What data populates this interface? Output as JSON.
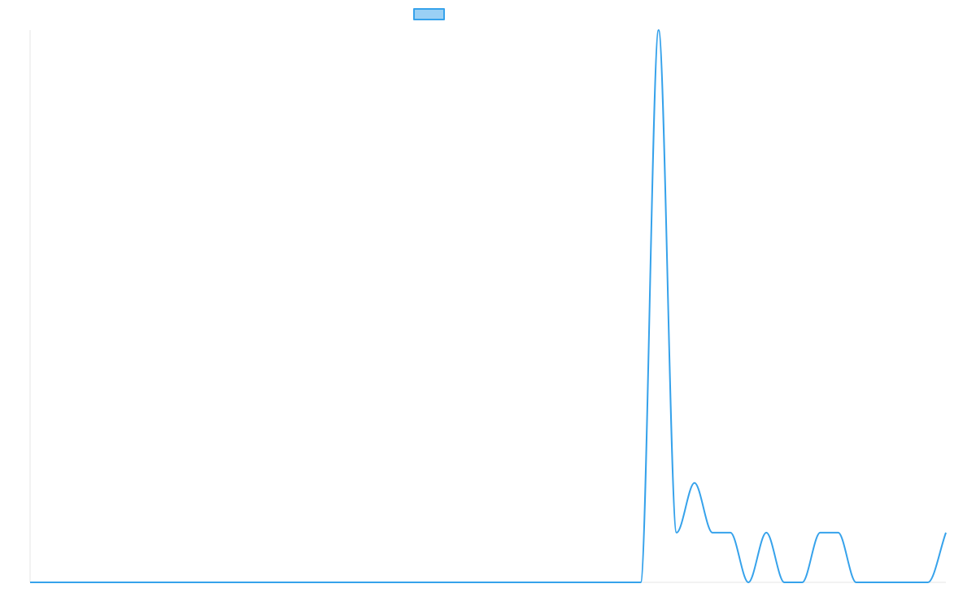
{
  "chart_data": {
    "type": "line",
    "title": "",
    "xlabel": "",
    "ylabel": "",
    "grid": false,
    "legend_placement": "top",
    "colors": {
      "line": "#36a2eb",
      "legend_fill": "#9ad0f5",
      "axis": "#e6e6e6"
    },
    "series": [
      {
        "name": "",
        "x": [
          0,
          34,
          35,
          36,
          37,
          38,
          39,
          40,
          41,
          42,
          43,
          44,
          45,
          46,
          47,
          48,
          49,
          50,
          51
        ],
        "values": [
          0,
          0,
          100,
          9,
          18,
          9,
          9,
          0,
          9,
          0,
          0,
          9,
          9,
          0,
          0,
          0,
          0,
          0,
          9
        ]
      }
    ],
    "xlim": [
      0,
      51
    ],
    "ylim": [
      0,
      100
    ]
  }
}
